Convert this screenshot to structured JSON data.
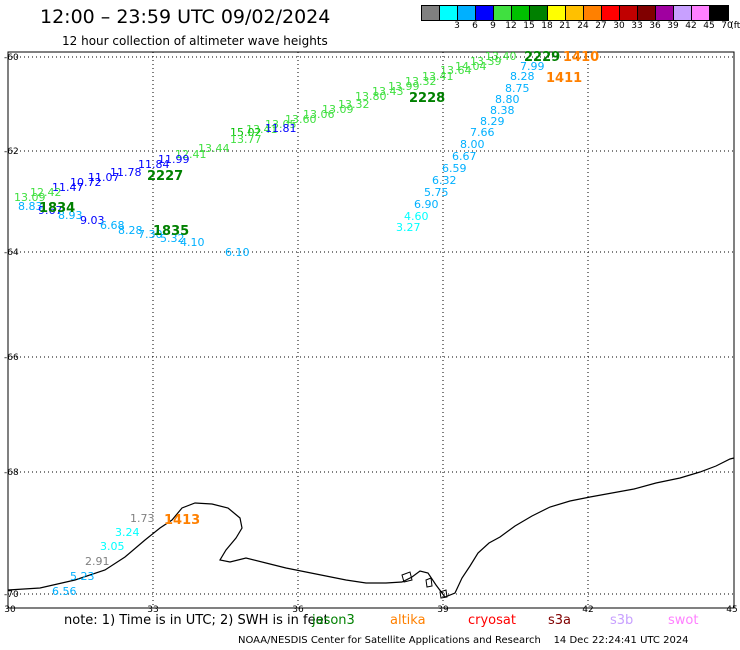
{
  "header": {
    "title": "12:00 – 23:59 UTC 09/02/2024",
    "subtitle": "12 hour collection of altimeter wave heights"
  },
  "legend": {
    "unit": "(ft)",
    "items": [
      {
        "label": "",
        "color": "#808080"
      },
      {
        "label": "3",
        "color": "#00ffff"
      },
      {
        "label": "6",
        "color": "#00b0ff"
      },
      {
        "label": "9",
        "color": "#0000ff"
      },
      {
        "label": "12",
        "color": "#40e040"
      },
      {
        "label": "15",
        "color": "#00c000"
      },
      {
        "label": "18",
        "color": "#008000"
      },
      {
        "label": "21",
        "color": "#ffff00"
      },
      {
        "label": "24",
        "color": "#ffc000"
      },
      {
        "label": "27",
        "color": "#ff8000"
      },
      {
        "label": "30",
        "color": "#ff0000"
      },
      {
        "label": "33",
        "color": "#c00000"
      },
      {
        "label": "36",
        "color": "#800000"
      },
      {
        "label": "39",
        "color": "#a000a0"
      },
      {
        "label": "42",
        "color": "#c8a0ff"
      },
      {
        "label": "45",
        "color": "#ff80ff"
      },
      {
        "label": "70",
        "color": "#000000"
      }
    ]
  },
  "axes": {
    "lat_labels": [
      "-60",
      "-62",
      "-64",
      "-66",
      "-68",
      "-70"
    ],
    "lon_labels": [
      "30",
      "33",
      "36",
      "39",
      "42",
      "45"
    ]
  },
  "tracks": [
    {
      "labels": [
        {
          "t": "13.40",
          "c": "#40e040"
        },
        {
          "t": "13.39",
          "c": "#40e040"
        },
        {
          "t": "14.04",
          "c": "#40e040"
        },
        {
          "t": "13.64",
          "c": "#40e040"
        },
        {
          "t": "13.41",
          "c": "#40e040"
        },
        {
          "t": "13.32",
          "c": "#40e040"
        },
        {
          "t": "13.99",
          "c": "#40e040"
        },
        {
          "t": "13.43",
          "c": "#40e040"
        },
        {
          "t": "13.80",
          "c": "#40e040"
        },
        {
          "t": "13.32",
          "c": "#40e040"
        },
        {
          "t": "13.09",
          "c": "#40e040"
        },
        {
          "t": "13.06",
          "c": "#40e040"
        },
        {
          "t": "13.60",
          "c": "#40e040"
        },
        {
          "t": "13.05",
          "c": "#40e040"
        },
        {
          "t": "13.41",
          "c": "#40e040"
        },
        {
          "t": "15.02",
          "c": "#00c000"
        },
        {
          "t": "11.81",
          "c": "#0000ff"
        },
        {
          "t": "13.77",
          "c": "#40e040"
        },
        {
          "t": "13.44",
          "c": "#40e040"
        },
        {
          "t": "12.41",
          "c": "#40e040"
        },
        {
          "t": "11.99",
          "c": "#0000ff"
        },
        {
          "t": "11.84",
          "c": "#0000ff"
        },
        {
          "t": "11.78",
          "c": "#0000ff"
        },
        {
          "t": "11.07",
          "c": "#0000ff"
        },
        {
          "t": "10.72",
          "c": "#0000ff"
        },
        {
          "t": "11.47",
          "c": "#0000ff"
        },
        {
          "t": "12.42",
          "c": "#40e040"
        },
        {
          "t": "13.09",
          "c": "#40e040"
        }
      ]
    },
    {
      "labels": [
        {
          "t": "8.83",
          "c": "#00b0ff"
        },
        {
          "t": "9.67",
          "c": "#0000ff"
        },
        {
          "t": "8.93",
          "c": "#00b0ff"
        },
        {
          "t": "9.03",
          "c": "#0000ff"
        },
        {
          "t": "6.68",
          "c": "#00b0ff"
        },
        {
          "t": "8.28",
          "c": "#00b0ff"
        },
        {
          "t": "7.30",
          "c": "#00b0ff"
        },
        {
          "t": "5.32",
          "c": "#00b0ff"
        },
        {
          "t": "4.10",
          "c": "#00b0ff"
        },
        {
          "t": "6.10",
          "c": "#00b0ff"
        }
      ]
    },
    {
      "labels": [
        {
          "t": "7.99",
          "c": "#00b0ff"
        },
        {
          "t": "8.28",
          "c": "#00b0ff"
        },
        {
          "t": "8.75",
          "c": "#00b0ff"
        },
        {
          "t": "8.80",
          "c": "#00b0ff"
        },
        {
          "t": "8.38",
          "c": "#00b0ff"
        },
        {
          "t": "8.29",
          "c": "#00b0ff"
        },
        {
          "t": "7.66",
          "c": "#00b0ff"
        },
        {
          "t": "8.00",
          "c": "#00b0ff"
        },
        {
          "t": "6.67",
          "c": "#00b0ff"
        },
        {
          "t": "6.59",
          "c": "#00b0ff"
        },
        {
          "t": "6.32",
          "c": "#00b0ff"
        },
        {
          "t": "5.75",
          "c": "#00b0ff"
        },
        {
          "t": "6.90",
          "c": "#00b0ff"
        },
        {
          "t": "4.60",
          "c": "#00ffff"
        },
        {
          "t": "3.27",
          "c": "#00ffff"
        }
      ]
    },
    {
      "labels": [
        {
          "t": "1.73",
          "c": "#808080"
        },
        {
          "t": "3.24",
          "c": "#00ffff"
        },
        {
          "t": "3.05",
          "c": "#00ffff"
        },
        {
          "t": "2.91",
          "c": "#808080"
        },
        {
          "t": "5.23",
          "c": "#00b0ff"
        },
        {
          "t": "6.56",
          "c": "#00b0ff"
        }
      ]
    }
  ],
  "time_labels": [
    {
      "t": "2229",
      "c": "#008000"
    },
    {
      "t": "1410",
      "c": "#ff8000"
    },
    {
      "t": "1411",
      "c": "#ff8000"
    },
    {
      "t": "2228",
      "c": "#008000"
    },
    {
      "t": "2227",
      "c": "#008000"
    },
    {
      "t": "1834",
      "c": "#008000"
    },
    {
      "t": "1835",
      "c": "#008000"
    },
    {
      "t": "1413",
      "c": "#ff8000"
    }
  ],
  "notes": {
    "note_text": "note: 1) Time is in UTC; 2) SWH is in feet",
    "satellites": [
      {
        "name": "jason3",
        "color": "#008000"
      },
      {
        "name": "altika",
        "color": "#ff8000"
      },
      {
        "name": "cryosat",
        "color": "#ff0000"
      },
      {
        "name": "s3a",
        "color": "#800000"
      },
      {
        "name": "s3b",
        "color": "#c8a0ff"
      },
      {
        "name": "swot",
        "color": "#ff80ff"
      }
    ],
    "footer": "NOAA/NESDIS Center for Satellite Applications and Research    14 Dec 22:24:41 UTC 2024"
  }
}
